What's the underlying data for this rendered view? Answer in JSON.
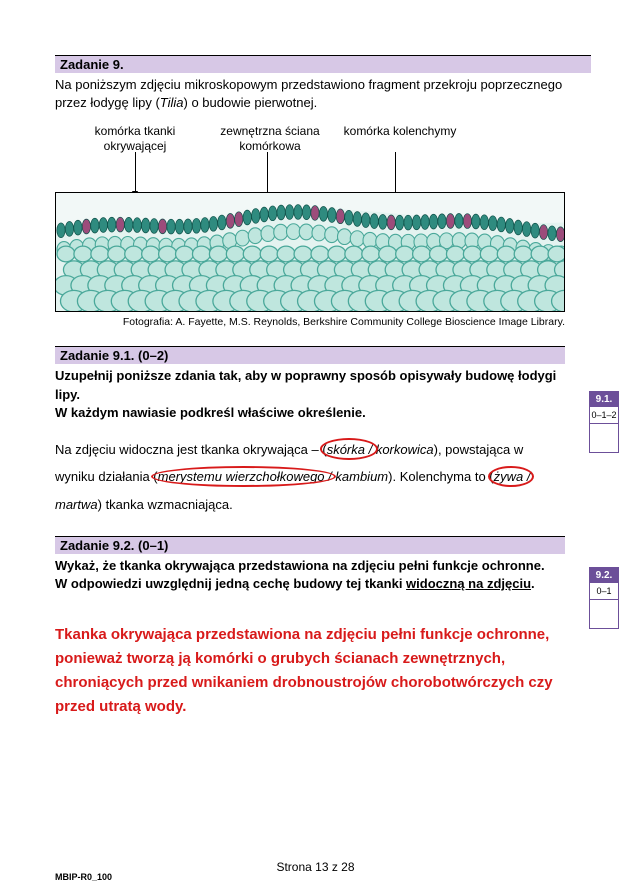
{
  "task9": {
    "header": "Zadanie 9.",
    "intro_a": "Na poniższym zdjęciu mikroskopowym przedstawiono fragment przekroju poprzecznego przez łodygę lipy (",
    "intro_italic": "Tilia",
    "intro_b": ") o budowie pierwotnej."
  },
  "labels": {
    "l1": "komórka tkanki okrywającej",
    "l2": "zewnętrzna ściana komórkowa",
    "l3": "komórka kolenchymy"
  },
  "caption": "Fotografia: A. Fayette, M.S. Reynolds, Berkshire Community College Bioscience Image Library.",
  "task91": {
    "header": "Zadanie 9.1. (0–2)",
    "instr1": "Uzupełnij poniższe zdania tak, aby w poprawny sposób opisywały budowę łodygi lipy.",
    "instr2": "W każdym nawiasie podkreśl właściwe określenie.",
    "line1_a": "Na zdjęciu widoczna jest tkanka okrywająca – (",
    "opt1a": "skórka",
    "sep1": " / ",
    "opt1b": "korkowica",
    "line1_b": "), powstająca w wyniku",
    "line2_a": "działania (",
    "opt2a": "merystemu wierzchołkowego",
    "sep2": " / ",
    "opt2b": "kambium",
    "line2_b": "). Kolenchyma to (",
    "opt3a": "żywa",
    "sep3": " / ",
    "opt3b": "martwa",
    "line2_c": ") tkanka",
    "line3": "wzmacniająca."
  },
  "task92": {
    "header": "Zadanie 9.2. (0–1)",
    "instr1": "Wykaż, że tkanka okrywająca przedstawiona na zdjęciu pełni funkcje ochronne.",
    "instr2a": "W odpowiedzi uwzględnij jedną cechę budowy tej tkanki ",
    "instr2b": "widoczną na zdjęciu",
    "instr2c": "."
  },
  "answer": "Tkanka okrywająca przedstawiona na zdjęciu pełni funkcje ochronne, ponieważ tworzą ją komórki o grubych ścianach zewnętrznych, chroniących przed wnikaniem drobnoustrojów chorobotwórczych czy przed utratą wody.",
  "sidebox1": {
    "hdr": "9.1.",
    "pts": "0–1–2"
  },
  "sidebox2": {
    "hdr": "9.2.",
    "pts": "0–1"
  },
  "footer": "Strona 13 z 28",
  "doc_code": "MBIP-R0_100",
  "micro": {
    "bg": "#f2f8f7",
    "cells_top_fill": "#2f8b7f",
    "cells_top_stroke": "#0e5048",
    "cells_mid_fill": "#bfe6de",
    "cells_mid_stroke": "#4aa89a",
    "accent": "#9c4c7b"
  }
}
